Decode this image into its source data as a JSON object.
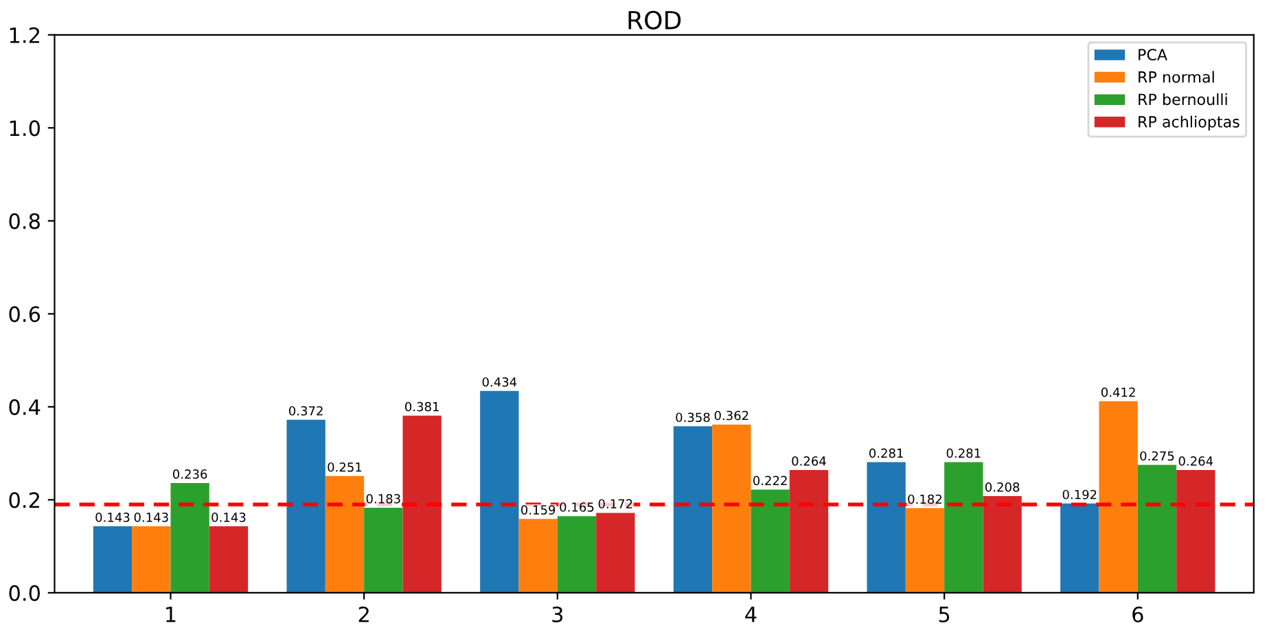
{
  "chart_data": {
    "type": "bar",
    "title": "ROD",
    "categories": [
      "1",
      "2",
      "3",
      "4",
      "5",
      "6"
    ],
    "series": [
      {
        "name": "PCA",
        "color": "#1f77b4",
        "values": [
          0.143,
          0.372,
          0.434,
          0.358,
          0.281,
          0.192
        ]
      },
      {
        "name": "RP normal",
        "color": "#ff7f0e",
        "values": [
          0.143,
          0.251,
          0.159,
          0.362,
          0.182,
          0.412
        ]
      },
      {
        "name": "RP bernoulli",
        "color": "#2ca02c",
        "values": [
          0.236,
          0.183,
          0.165,
          0.222,
          0.281,
          0.275
        ]
      },
      {
        "name": "RP achlioptas",
        "color": "#d62728",
        "values": [
          0.143,
          0.381,
          0.172,
          0.264,
          0.208,
          0.264
        ]
      }
    ],
    "ylim": [
      0,
      1.2
    ],
    "yticks": [
      {
        "value": 0,
        "label": "0.0"
      },
      {
        "value": 0.2,
        "label": "0.2"
      },
      {
        "value": 0.4,
        "label": "0.4"
      },
      {
        "value": 0.6,
        "label": "0.6"
      },
      {
        "value": 0.8,
        "label": "0.8"
      },
      {
        "value": 1.0,
        "label": "1.0"
      },
      {
        "value": 1.2,
        "label": "1.2"
      }
    ],
    "ref_lines": [
      {
        "axis": "y",
        "value": 0.19,
        "color": "#ff0000",
        "line_style": "dashed"
      }
    ],
    "data_labels": true,
    "legend": "top right",
    "grid": false
  }
}
